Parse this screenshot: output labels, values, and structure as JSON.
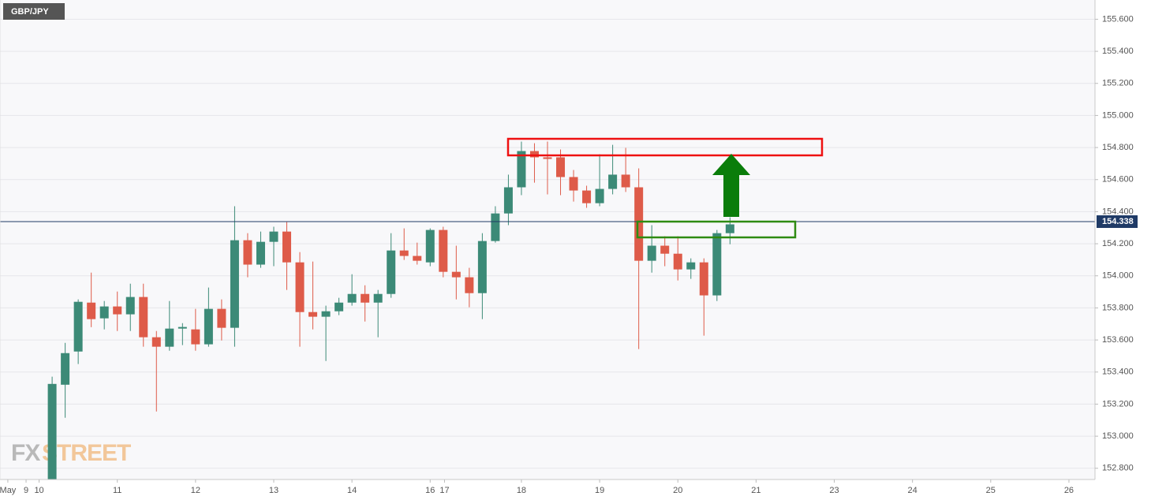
{
  "chart_data": {
    "type": "candlestick",
    "title": "GBP/JPY",
    "watermark": [
      "FX",
      "STREET"
    ],
    "x": [
      1,
      2,
      3,
      4,
      5,
      6,
      7,
      8,
      9,
      10,
      11,
      12,
      13,
      14,
      15,
      16,
      17,
      18,
      19,
      20,
      21,
      22,
      23,
      24,
      25,
      26,
      27,
      28,
      29,
      30,
      31,
      32,
      33,
      34,
      35,
      36,
      37,
      38,
      39,
      40,
      41,
      42,
      43,
      44,
      45,
      46,
      47,
      48,
      49,
      50,
      51,
      52,
      53
    ],
    "open": [
      152.72,
      153.321,
      153.528,
      153.833,
      153.735,
      153.809,
      153.76,
      153.868,
      153.617,
      153.558,
      153.671,
      153.666,
      153.573,
      153.794,
      153.676,
      154.222,
      154.07,
      154.212,
      154.276,
      154.084,
      153.774,
      153.745,
      153.779,
      153.833,
      153.887,
      153.833,
      153.887,
      154.158,
      154.124,
      154.084,
      154.286,
      154.025,
      153.991,
      153.892,
      154.217,
      154.389,
      154.552,
      154.778,
      154.739,
      154.739,
      154.616,
      154.532,
      154.453,
      154.542,
      154.631,
      154.552,
      154.094,
      154.188,
      154.138,
      154.04,
      154.084,
      153.878,
      154.266
    ],
    "high": [
      153.371,
      153.582,
      153.853,
      154.02,
      153.843,
      153.902,
      153.951,
      153.951,
      153.656,
      153.843,
      153.705,
      153.794,
      153.927,
      153.853,
      154.434,
      154.266,
      154.276,
      154.306,
      154.335,
      154.148,
      154.089,
      153.814,
      153.863,
      154.01,
      153.941,
      153.912,
      154.266,
      154.296,
      154.207,
      154.296,
      154.306,
      154.188,
      154.05,
      154.266,
      154.434,
      154.631,
      154.837,
      154.827,
      154.837,
      154.788,
      154.66,
      154.562,
      154.758,
      154.817,
      154.798,
      154.67,
      154.316,
      154.247,
      154.247,
      154.109,
      154.109,
      154.286,
      154.365
    ],
    "low": [
      152.7,
      153.115,
      153.45,
      153.68,
      153.666,
      153.656,
      153.656,
      153.558,
      153.154,
      153.533,
      153.568,
      153.533,
      153.558,
      153.597,
      153.558,
      153.991,
      154.05,
      154.06,
      153.912,
      153.558,
      153.666,
      153.469,
      153.755,
      153.814,
      153.715,
      153.617,
      153.863,
      154.099,
      154.07,
      154.06,
      153.991,
      153.853,
      153.804,
      153.73,
      154.207,
      154.316,
      154.503,
      154.581,
      154.508,
      154.503,
      154.463,
      154.424,
      154.434,
      154.508,
      154.523,
      153.543,
      154.02,
      154.06,
      153.971,
      153.981,
      153.627,
      153.843,
      154.197
    ],
    "close": [
      153.326,
      153.518,
      153.838,
      153.73,
      153.809,
      153.76,
      153.868,
      153.617,
      153.558,
      153.671,
      153.681,
      153.573,
      153.794,
      153.676,
      154.222,
      154.07,
      154.212,
      154.276,
      154.084,
      153.774,
      153.745,
      153.779,
      153.833,
      153.887,
      153.833,
      153.887,
      154.158,
      154.124,
      154.094,
      154.286,
      154.025,
      153.991,
      153.892,
      154.217,
      154.389,
      154.552,
      154.778,
      154.739,
      154.729,
      154.616,
      154.532,
      154.453,
      154.542,
      154.631,
      154.552,
      154.094,
      154.188,
      154.138,
      154.04,
      154.084,
      153.878,
      154.266,
      154.321
    ],
    "up_color": "#3c8a77",
    "down_color": "#de5b49",
    "last_price": {
      "value": 154.338,
      "label": "154.338"
    },
    "xlim": [
      -3,
      81
    ],
    "ylim": [
      152.73,
      155.72
    ],
    "xticks": [
      {
        "value": -2.4,
        "label": "May"
      },
      {
        "value": -1,
        "label": "9"
      },
      {
        "value": 0,
        "label": "10"
      },
      {
        "value": 6,
        "label": "11"
      },
      {
        "value": 12,
        "label": "12"
      },
      {
        "value": 18,
        "label": "13"
      },
      {
        "value": 24,
        "label": "14"
      },
      {
        "value": 30,
        "label": "16"
      },
      {
        "value": 31.1,
        "label": "17"
      },
      {
        "value": 37,
        "label": "18"
      },
      {
        "value": 43,
        "label": "19"
      },
      {
        "value": 49,
        "label": "20"
      },
      {
        "value": 55,
        "label": "21"
      },
      {
        "value": 61,
        "label": "23"
      },
      {
        "value": 67,
        "label": "24"
      },
      {
        "value": 73,
        "label": "25"
      },
      {
        "value": 79,
        "label": "26"
      }
    ],
    "yticks": [
      {
        "value": 152.8,
        "label": "152.800"
      },
      {
        "value": 153.0,
        "label": "153.000"
      },
      {
        "value": 153.2,
        "label": "153.200"
      },
      {
        "value": 153.4,
        "label": "153.400"
      },
      {
        "value": 153.6,
        "label": "153.600"
      },
      {
        "value": 153.8,
        "label": "153.800"
      },
      {
        "value": 154.0,
        "label": "154.000"
      },
      {
        "value": 154.2,
        "label": "154.200"
      },
      {
        "value": 154.4,
        "label": "154.400"
      },
      {
        "value": 154.6,
        "label": "154.600"
      },
      {
        "value": 154.8,
        "label": "154.800"
      },
      {
        "value": 155.0,
        "label": "155.000"
      },
      {
        "value": 155.2,
        "label": "155.200"
      },
      {
        "value": 155.4,
        "label": "155.400"
      },
      {
        "value": 155.6,
        "label": "155.600"
      }
    ],
    "grid": true
  }
}
